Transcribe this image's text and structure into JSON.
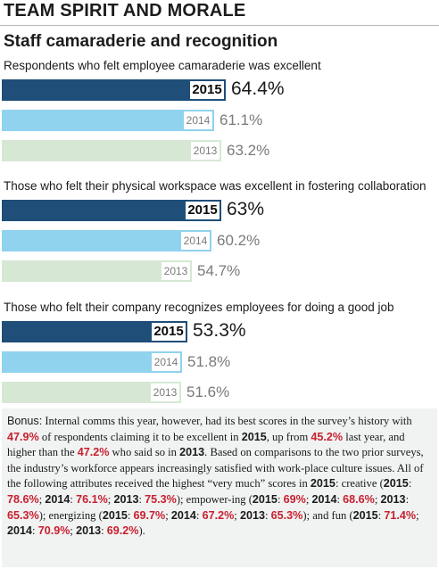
{
  "header": {
    "title": "TEAM SPIRIT AND MORALE"
  },
  "subtitle": "Staff camaraderie and recognition",
  "chart_data": {
    "type": "bar",
    "orientation": "horizontal",
    "groups": [
      {
        "label": "Respondents who felt employee camaraderie was excellent",
        "bars": [
          {
            "year": "2015",
            "value": 64.4,
            "label": "64.4%",
            "color": "#1f4e79"
          },
          {
            "year": "2014",
            "value": 61.1,
            "label": "61.1%",
            "color": "#8fd3ee"
          },
          {
            "year": "2013",
            "value": 63.2,
            "label": "63.2%",
            "color": "#d6e8d4"
          }
        ]
      },
      {
        "label": "Those who felt their physical workspace was excellent in fostering collaboration",
        "bars": [
          {
            "year": "2015",
            "value": 63,
            "label": "63%",
            "color": "#1f4e79"
          },
          {
            "year": "2014",
            "value": 60.2,
            "label": "60.2%",
            "color": "#8fd3ee"
          },
          {
            "year": "2013",
            "value": 54.7,
            "label": "54.7%",
            "color": "#d6e8d4"
          }
        ]
      },
      {
        "label": "Those who felt their company recognizes employees for doing a good job",
        "bars": [
          {
            "year": "2015",
            "value": 53.3,
            "label": "53.3%",
            "color": "#1f4e79"
          },
          {
            "year": "2014",
            "value": 51.8,
            "label": "51.8%",
            "color": "#8fd3ee"
          },
          {
            "year": "2013",
            "value": 51.6,
            "label": "51.6%",
            "color": "#d6e8d4"
          }
        ]
      }
    ]
  },
  "bonus": {
    "lead": "Bonus:",
    "t1": " Internal comms this year, however, had its best scores in the survey’s history with ",
    "v1": "47.9%",
    "t2": " of respondents claiming it to be excellent in ",
    "y1": "2015",
    "t3": ", up from ",
    "v2": "45.2%",
    "t4": " last year, and higher than the ",
    "v3": "47.2%",
    "t5": " who said so in ",
    "y2": "2013",
    "t6": ". Based on comparisons to the two prior surveys, the industry’s workforce appears increasingly satisfied with work-place culture issues. All of the following attributes received the highest “very much” scores in ",
    "y3": "2015",
    "t7": ": creative (",
    "c1y": "2015",
    "c1v": "78.6%",
    "c2y": "2014",
    "c2v": "76.1%",
    "c3y": "2013",
    "c3v": "75.3%",
    "t8": "); empower-ing (",
    "e1y": "2015",
    "e1v": "69%",
    "e2y": "2014",
    "e2v": "68.6%",
    "e3y": "2013",
    "e3v": "65.3%",
    "t9": "); energizing (",
    "n1y": "2015",
    "n1v": "69.7%",
    "n2y": "2014",
    "n2v": "67.2%",
    "n3y": "2013",
    "n3v": "65.3%",
    "t10": "); and fun (",
    "f1y": "2015",
    "f1v": "71.4%",
    "f2y": "2014",
    "f2v": "70.9%",
    "f3y": "2013",
    "f3v": "69.2%",
    "t11": ")."
  }
}
